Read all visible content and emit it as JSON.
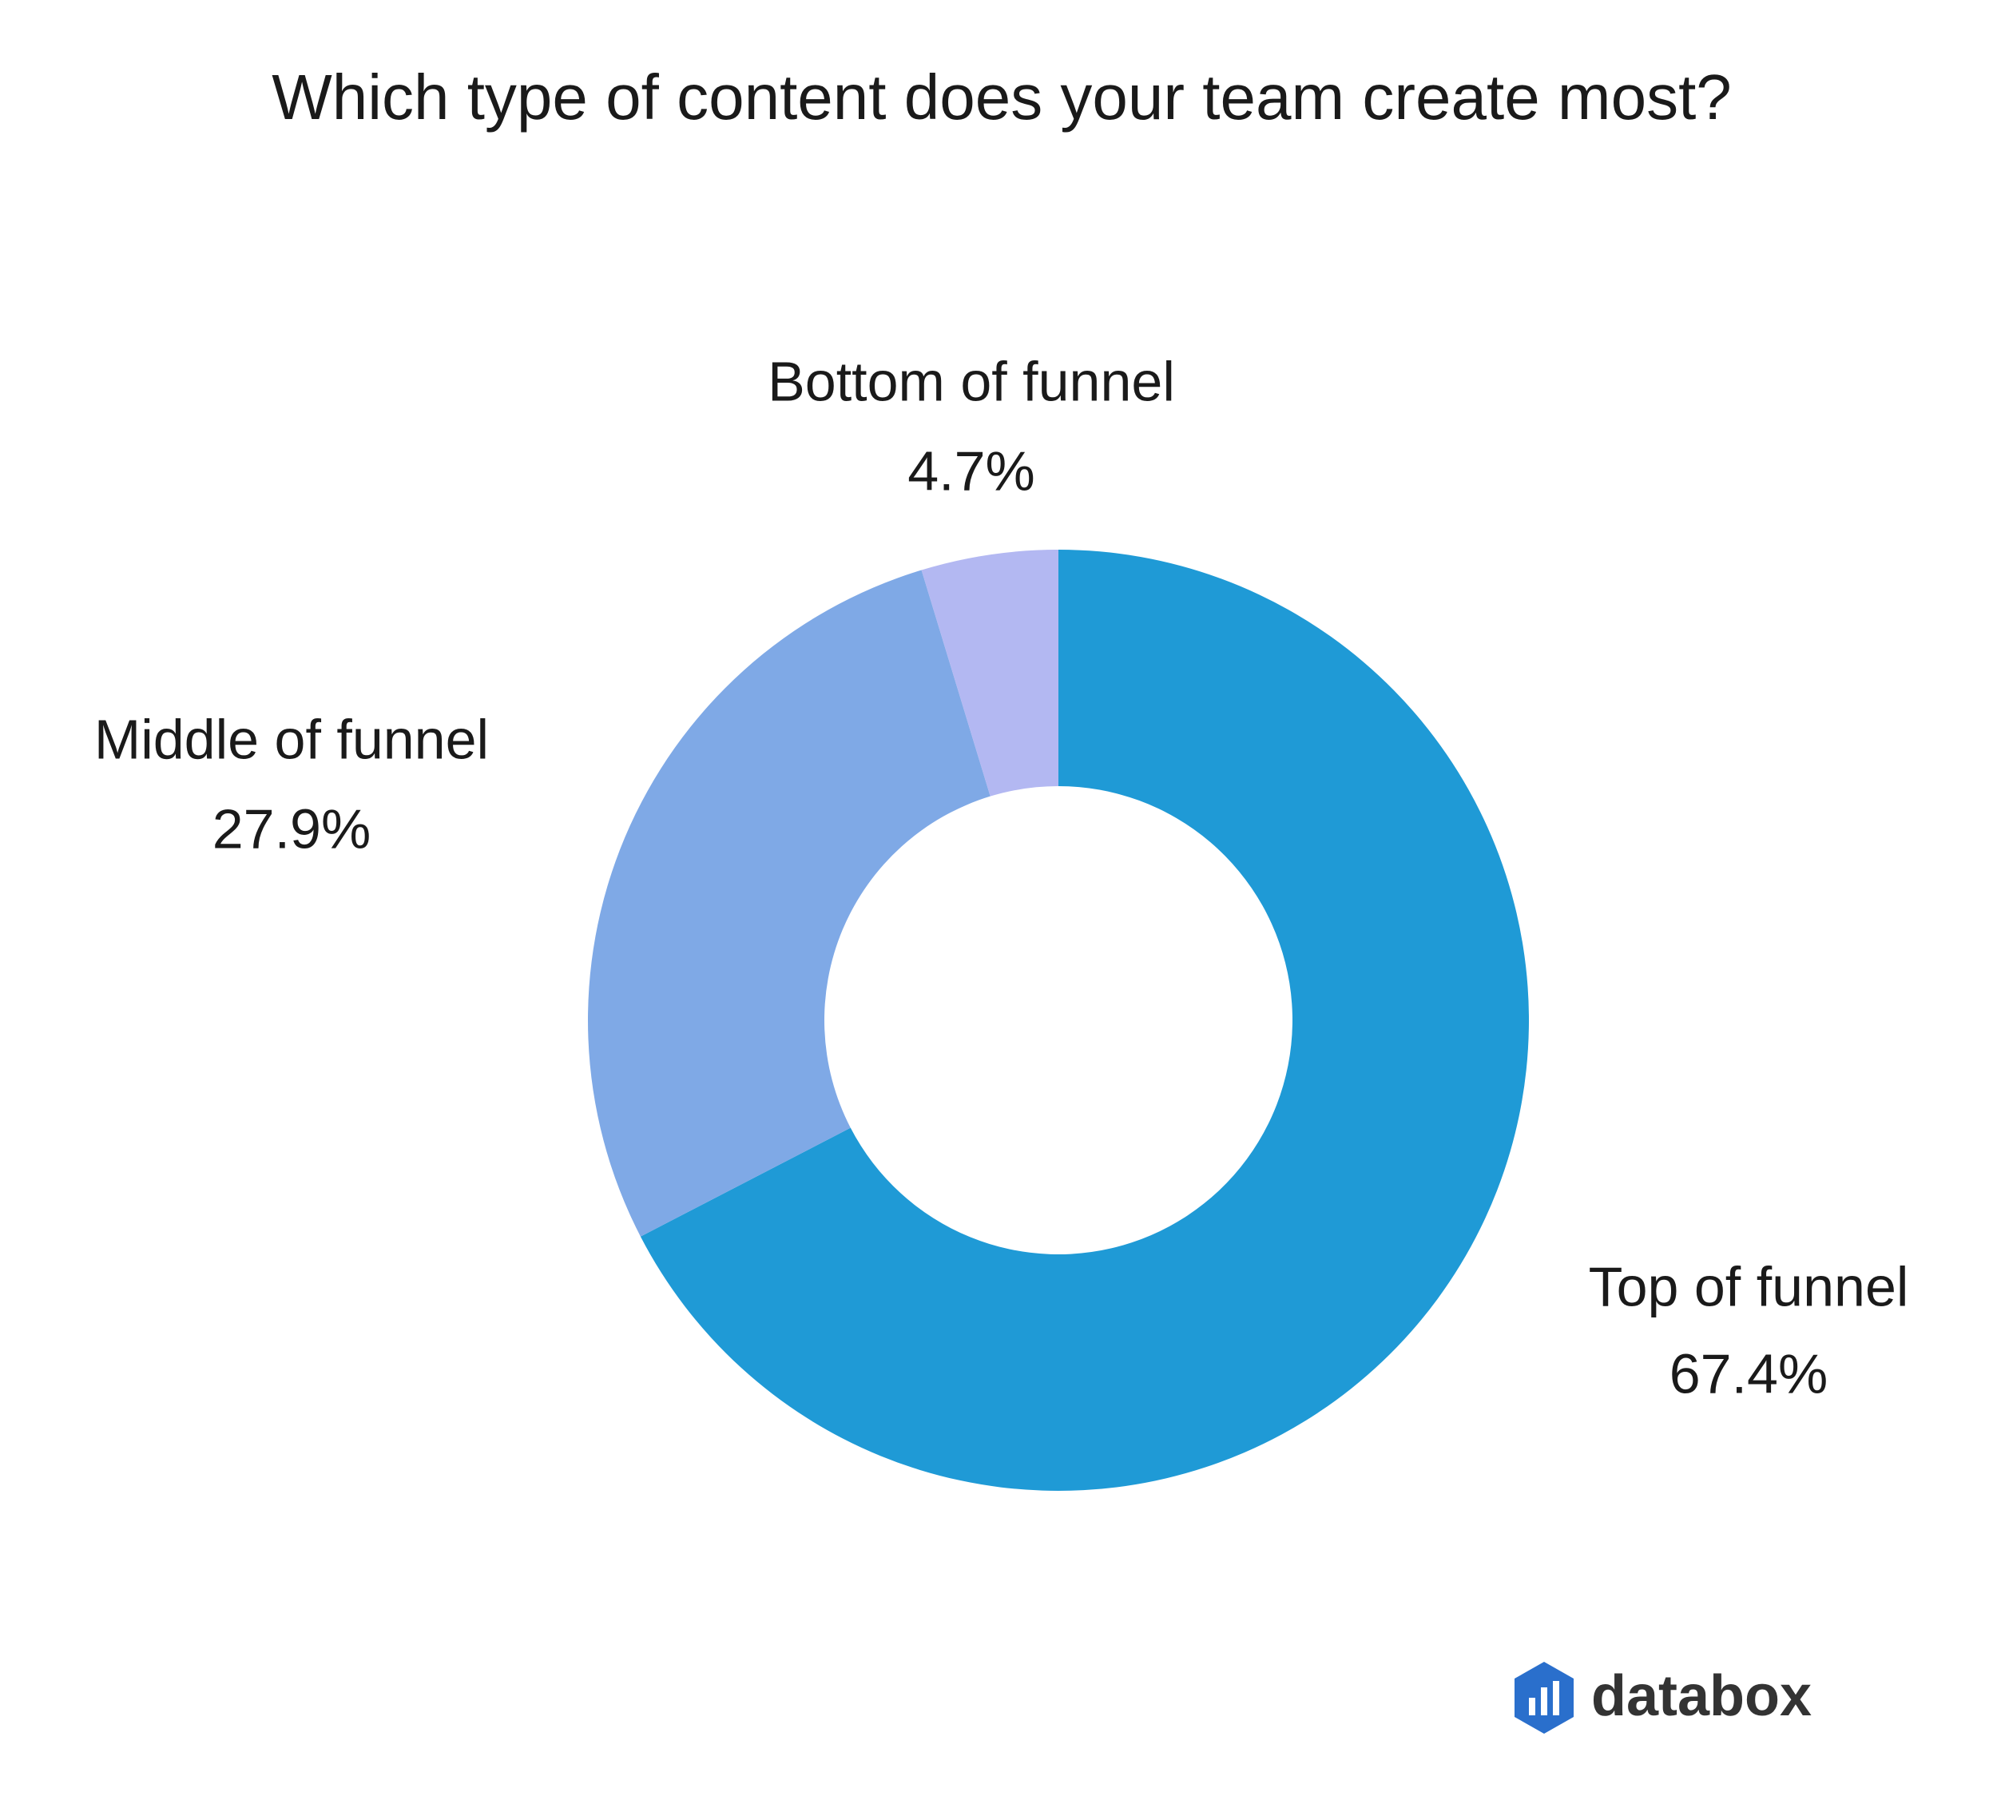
{
  "chart_data": {
    "type": "donut",
    "title": "Which type of content does your team create most?",
    "categories": [
      "Top of funnel",
      "Middle of funnel",
      "Bottom of funnel"
    ],
    "values": [
      67.4,
      27.9,
      4.7
    ],
    "value_labels": [
      "67.4%",
      "27.9%",
      "4.7%"
    ],
    "colors": [
      "#1f9ad6",
      "#7fa9e6",
      "#b3b8f2"
    ]
  },
  "brand": "databox"
}
